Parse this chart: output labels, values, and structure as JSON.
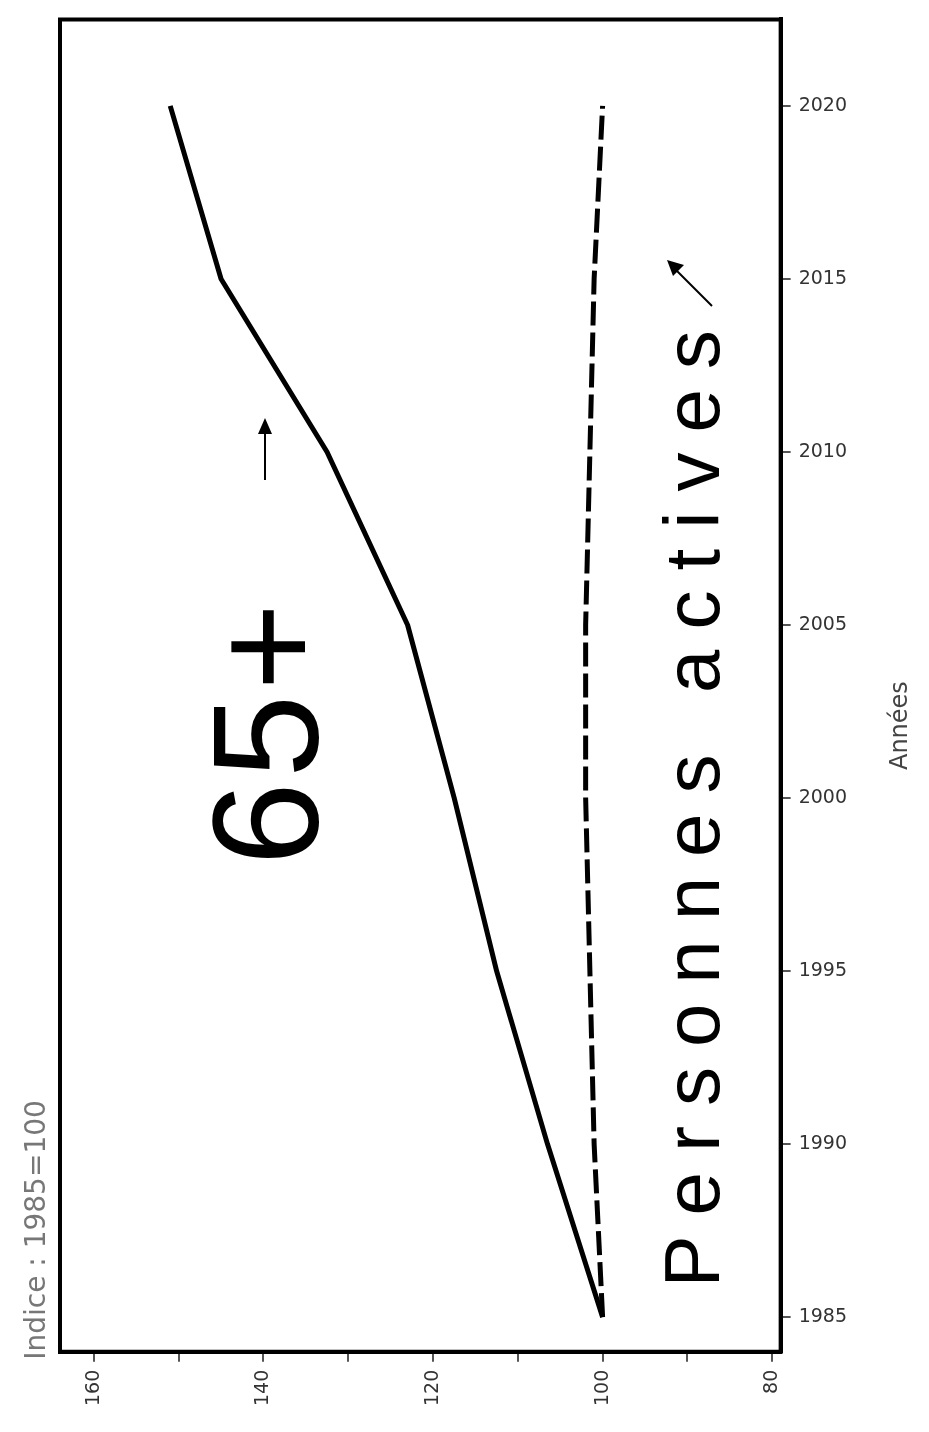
{
  "chart_data": {
    "type": "line",
    "title": "Indice : 1985=100",
    "ylabel": "Années",
    "series": [
      {
        "color": "#000000",
        "line_style": "solid",
        "x": [
          100,
          106.5,
          112.5,
          117.5,
          123,
          132.5,
          145,
          151
        ],
        "values": [
          1985,
          1990,
          1995,
          2000,
          2005,
          2010,
          2015,
          2020
        ]
      },
      {
        "color": "#000000",
        "line_style": "dashed",
        "x": [
          100,
          101,
          101.5,
          102,
          102,
          101.5,
          101,
          100
        ],
        "values": [
          1985,
          1990,
          1995,
          2000,
          2005,
          2010,
          2015,
          2020
        ]
      }
    ],
    "ylim": [
      1984,
      2022.5
    ],
    "yticks": [
      1985,
      1990,
      1995,
      2000,
      2005,
      2010,
      2015,
      2020
    ],
    "xlim": [
      164,
      79
    ],
    "xticks": [
      80,
      {
        "value": 90,
        "label": null
      },
      100,
      {
        "value": 110,
        "label": null
      },
      120,
      {
        "value": 130,
        "label": null
      },
      140,
      {
        "value": 150,
        "label": null
      },
      160
    ],
    "grid": false,
    "legend": false,
    "marker": "none",
    "annotations": [
      "65+",
      "Personnes actives"
    ]
  }
}
